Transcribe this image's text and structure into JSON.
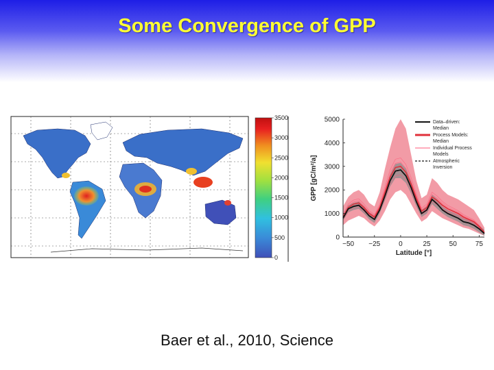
{
  "slide": {
    "title": "Some Convergence of GPP",
    "citation": "Baer et al., 2010, Science"
  },
  "colors": {
    "title": "#ffff33",
    "header_gradient_top": "#1e1ee6",
    "data_driven_median": "#111111",
    "data_driven_band": "#8c8c8c",
    "process_median": "#e0303a",
    "process_band": "#f08a96",
    "individual_process": "#ff5a78"
  },
  "chart_data": [
    {
      "type": "heatmap",
      "description_visible": "global map of GPP",
      "colorbar": {
        "ticks": [
          "0",
          "500",
          "1000",
          "1500",
          "2000",
          "2500",
          "3000",
          "3500"
        ],
        "range": [
          0,
          3500
        ],
        "colormap": [
          "#4050b8",
          "#3a8ad8",
          "#30c0e0",
          "#40d080",
          "#a0e040",
          "#f0e030",
          "#f09020",
          "#e82020",
          "#c01010"
        ]
      },
      "grid": true
    },
    {
      "type": "line",
      "title": "",
      "xlabel": "Latitude [°]",
      "ylabel": "GPP [gC/m²/a]",
      "xlim": [
        -55,
        80
      ],
      "ylim": [
        0,
        5000
      ],
      "xticks": [
        "−50",
        "−25",
        "0",
        "25",
        "50",
        "75"
      ],
      "yticks": [
        "0",
        "1000",
        "2000",
        "3000",
        "4000",
        "5000"
      ],
      "legend_placement": "top-right",
      "legend": {
        "heading1": "Data–driven:",
        "entry1": "Median",
        "heading2": "Process Models:",
        "entry2": "Median",
        "entry3a": "Individual Process",
        "entry3b": "Models",
        "entry4a": "Atmospheric",
        "entry4b": "Inversion"
      },
      "x": [
        -55,
        -50,
        -45,
        -40,
        -35,
        -30,
        -25,
        -20,
        -15,
        -10,
        -5,
        0,
        5,
        10,
        15,
        20,
        25,
        30,
        35,
        40,
        45,
        50,
        55,
        60,
        65,
        70,
        75,
        80
      ],
      "series": [
        {
          "name": "Data–driven Median",
          "values": [
            800,
            1200,
            1300,
            1350,
            1150,
            900,
            750,
            1150,
            1750,
            2400,
            2800,
            2850,
            2600,
            2100,
            1500,
            1000,
            1150,
            1600,
            1400,
            1150,
            1000,
            900,
            800,
            650,
            600,
            500,
            350,
            150
          ],
          "band_lower": [
            700,
            1050,
            1150,
            1200,
            1000,
            750,
            600,
            1000,
            1550,
            2150,
            2500,
            2500,
            2300,
            1850,
            1300,
            850,
            1000,
            1400,
            1200,
            1000,
            850,
            750,
            650,
            500,
            450,
            350,
            200,
            50
          ],
          "band_upper": [
            950,
            1350,
            1450,
            1500,
            1300,
            1050,
            900,
            1300,
            1950,
            2650,
            3100,
            3150,
            2900,
            2350,
            1700,
            1150,
            1300,
            1800,
            1600,
            1300,
            1150,
            1050,
            950,
            800,
            750,
            650,
            500,
            300
          ]
        },
        {
          "name": "Process Models Median",
          "values": [
            850,
            1250,
            1400,
            1450,
            1250,
            1000,
            850,
            1250,
            1900,
            2550,
            2950,
            3000,
            2750,
            2250,
            1650,
            1100,
            1250,
            1700,
            1550,
            1350,
            1200,
            1100,
            1000,
            850,
            750,
            650,
            450,
            200
          ],
          "band_lower": [
            500,
            700,
            800,
            900,
            800,
            600,
            450,
            700,
            1100,
            1600,
            1900,
            2000,
            1800,
            1400,
            1000,
            650,
            800,
            1100,
            950,
            800,
            700,
            600,
            500,
            400,
            350,
            250,
            150,
            50
          ],
          "band_upper": [
            1300,
            1700,
            1900,
            2000,
            1800,
            1450,
            1300,
            1900,
            2900,
            3800,
            4600,
            5000,
            4600,
            3500,
            2400,
            1650,
            1800,
            2500,
            2300,
            2000,
            1800,
            1700,
            1600,
            1450,
            1300,
            1150,
            800,
            400
          ]
        }
      ]
    }
  ]
}
